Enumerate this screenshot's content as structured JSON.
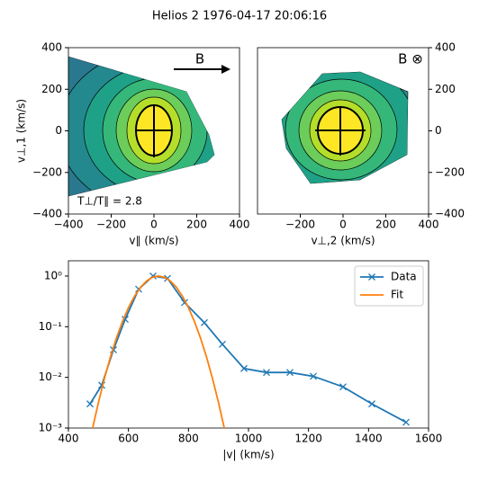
{
  "chart_data": [
    {
      "type": "contour",
      "title": "Helios 2 1976-04-17 20:06:16",
      "xlabel": "v∥ (km/s)",
      "ylabel": "v⊥,1 (km/s)",
      "xlim": [
        -400,
        400
      ],
      "ylim": [
        -400,
        400
      ],
      "xticks": [
        {
          "value": -400,
          "label": "−400"
        },
        {
          "value": -200,
          "label": "−200"
        },
        0,
        200,
        400
      ],
      "yticks": [
        {
          "value": -400,
          "label": "−400"
        },
        {
          "value": -200,
          "label": "−200"
        },
        0,
        200,
        400
      ],
      "yaxis_side": "left",
      "annotations": [
        "B",
        "T⊥/T∥ = 2.8"
      ]
    },
    {
      "type": "contour",
      "xlabel": "v⊥,2 (km/s)",
      "xlim": [
        -400,
        400
      ],
      "ylim": [
        -400,
        400
      ],
      "xticks": [
        {
          "value": -200,
          "label": "−200"
        },
        0,
        200,
        400
      ],
      "yticks": [
        {
          "value": -400,
          "label": "−400"
        },
        {
          "value": -200,
          "label": "−200"
        },
        0,
        200,
        400
      ],
      "yaxis_side": "right",
      "annotations": [
        "B ⊗"
      ]
    },
    {
      "type": "line",
      "xlabel": "|v| (km/s)",
      "xlim": [
        400,
        1600
      ],
      "ylim": [
        0.001,
        2
      ],
      "yscale": "log",
      "xticks": [
        400,
        600,
        800,
        1000,
        1200,
        1400,
        1600
      ],
      "yticks": [
        {
          "value": 0.001,
          "label": "10⁻³"
        },
        {
          "value": 0.01,
          "label": "10⁻²"
        },
        {
          "value": 0.1,
          "label": "10⁻¹"
        },
        {
          "value": 1,
          "label": "10⁰"
        }
      ],
      "legend": "upper right",
      "series": [
        {
          "name": "Data",
          "color": "#1f77b4",
          "marker": "x",
          "x": [
            472,
            511,
            550,
            589,
            634,
            682,
            730,
            787,
            853,
            913,
            985,
            1060,
            1138,
            1216,
            1315,
            1411,
            1525
          ],
          "values": [
            0.003,
            0.007,
            0.035,
            0.14,
            0.55,
            1.0,
            0.9,
            0.3,
            0.12,
            0.045,
            0.015,
            0.0125,
            0.0125,
            0.0105,
            0.0065,
            0.003,
            0.0013
          ]
        },
        {
          "name": "Fit",
          "color": "#ff7f0e",
          "x": [
            480,
            500,
            520,
            540,
            560,
            580,
            600,
            620,
            640,
            660,
            680,
            700,
            720,
            740,
            760,
            780,
            800,
            820,
            840,
            860,
            880,
            900,
            920
          ],
          "values": [
            0.00096,
            0.0032,
            0.0095,
            0.0253,
            0.06,
            0.126,
            0.238,
            0.399,
            0.596,
            0.795,
            0.944,
            1.0,
            0.944,
            0.795,
            0.596,
            0.399,
            0.238,
            0.126,
            0.06,
            0.0253,
            0.0095,
            0.0032,
            0.00096
          ]
        }
      ]
    }
  ]
}
